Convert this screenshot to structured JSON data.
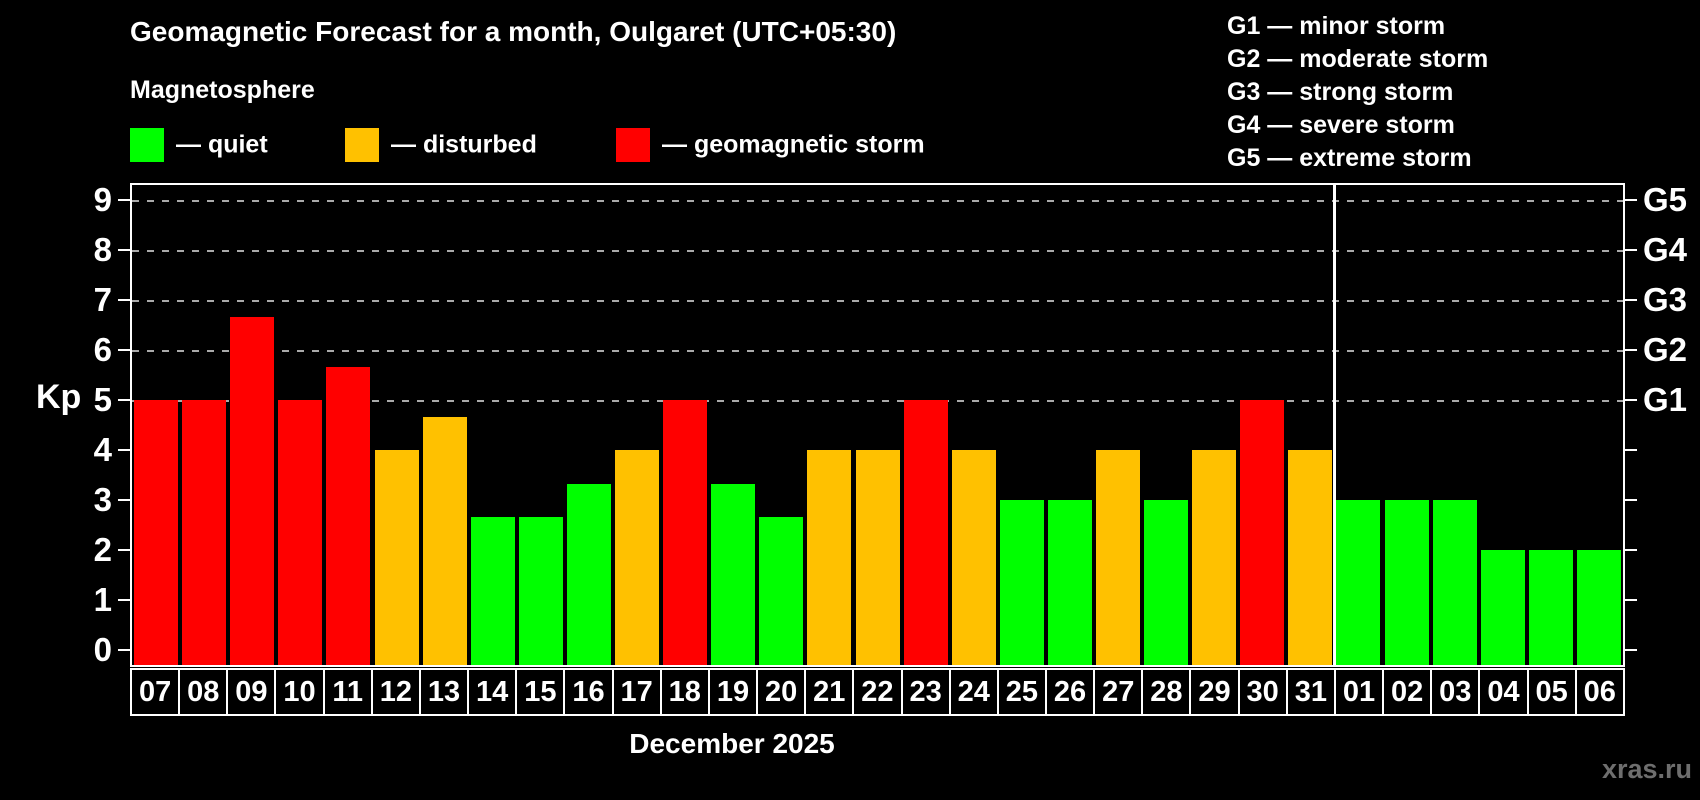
{
  "header": {
    "title": "Geomagnetic Forecast for a month, Oulgaret (UTC+05:30)",
    "subtitle": "Magnetosphere",
    "legend": [
      {
        "name": "quiet",
        "label": "— quiet",
        "color": "#00ff00"
      },
      {
        "name": "disturbed",
        "label": "— disturbed",
        "color": "#ffc100"
      },
      {
        "name": "geomagnetic-storm",
        "label": "— geomagnetic storm",
        "color": "#ff0000"
      }
    ],
    "g_legend": [
      "G1 — minor storm",
      "G2 — moderate storm",
      "G3 — strong storm",
      "G4 — severe storm",
      "G5 — extreme storm"
    ]
  },
  "chart_data": {
    "type": "bar",
    "title": "Geomagnetic Forecast for a month, Oulgaret (UTC+05:30)",
    "ylabel": "Kp",
    "xlabel": "December 2025",
    "ylim": [
      0,
      9
    ],
    "yticks": [
      0,
      1,
      2,
      3,
      4,
      5,
      6,
      7,
      8,
      9
    ],
    "gridlines_at": [
      5,
      6,
      7,
      8,
      9
    ],
    "grid_on": true,
    "legend_position": "top",
    "right_axis_labels": [
      {
        "label": "G1",
        "kp": 5
      },
      {
        "label": "G2",
        "kp": 6
      },
      {
        "label": "G3",
        "kp": 7
      },
      {
        "label": "G4",
        "kp": 8
      },
      {
        "label": "G5",
        "kp": 9
      }
    ],
    "categories": [
      "07",
      "08",
      "09",
      "10",
      "11",
      "12",
      "13",
      "14",
      "15",
      "16",
      "17",
      "18",
      "19",
      "20",
      "21",
      "22",
      "23",
      "24",
      "25",
      "26",
      "27",
      "28",
      "29",
      "30",
      "31",
      "01",
      "02",
      "03",
      "04",
      "05",
      "06"
    ],
    "values": [
      5.0,
      5.0,
      6.67,
      5.0,
      5.67,
      4.0,
      4.67,
      2.67,
      2.67,
      3.33,
      4.0,
      5.0,
      3.33,
      2.67,
      4.0,
      4.0,
      5.0,
      4.0,
      3.0,
      3.0,
      4.0,
      3.0,
      4.0,
      5.0,
      4.0,
      3.0,
      3.0,
      3.0,
      2.0,
      2.0,
      2.0
    ],
    "statuses": [
      "storm",
      "storm",
      "storm",
      "storm",
      "storm",
      "disturbed",
      "disturbed",
      "quiet",
      "quiet",
      "quiet",
      "disturbed",
      "storm",
      "quiet",
      "quiet",
      "disturbed",
      "disturbed",
      "storm",
      "disturbed",
      "quiet",
      "quiet",
      "disturbed",
      "quiet",
      "disturbed",
      "storm",
      "disturbed",
      "quiet",
      "quiet",
      "quiet",
      "quiet",
      "quiet",
      "quiet"
    ],
    "status_colors": {
      "quiet": "#00ff00",
      "disturbed": "#ffc100",
      "storm": "#ff0000"
    },
    "month_separator_after_index": 24
  },
  "colors": {
    "background": "#000000",
    "text": "#ffffff",
    "grid": "#aaaaaa",
    "watermark": "#6e6e6e"
  },
  "footer": {
    "watermark": "xras.ru"
  }
}
